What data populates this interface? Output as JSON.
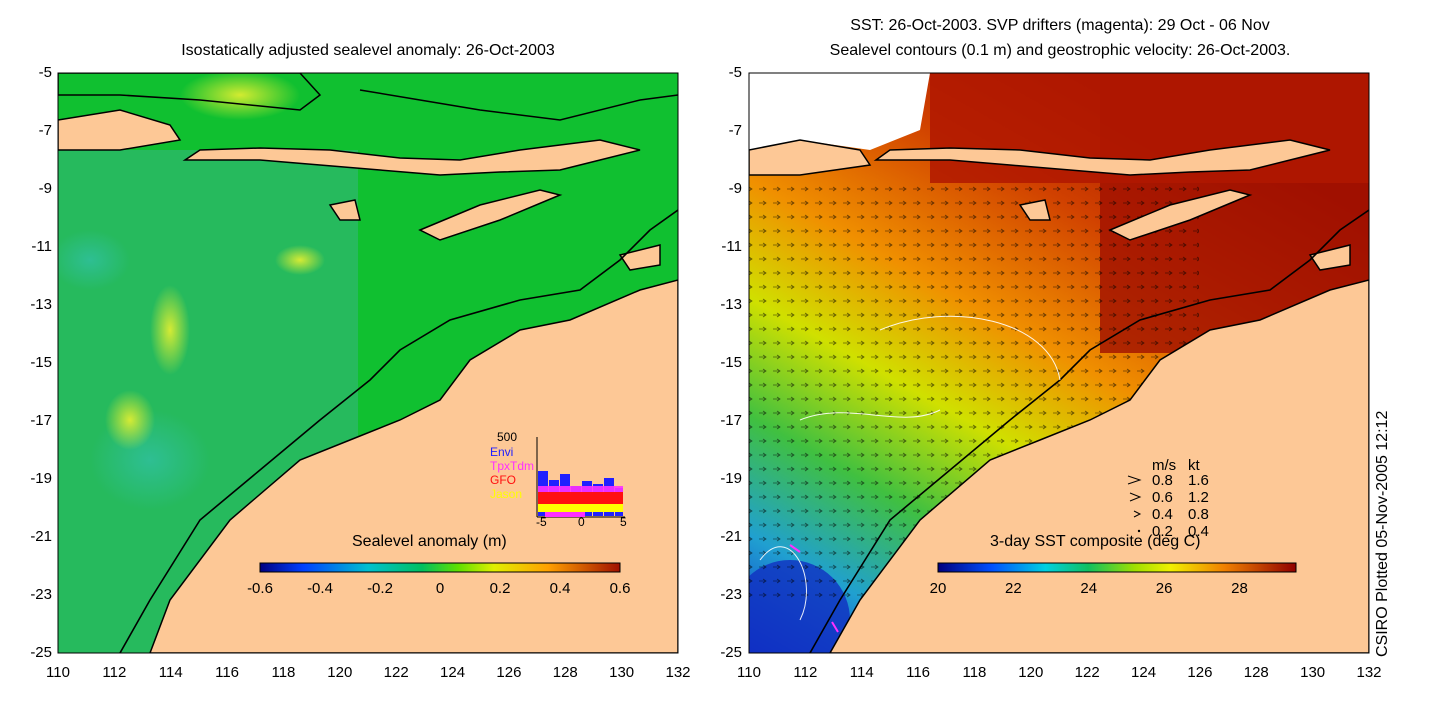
{
  "left_panel": {
    "title": "Isostatically adjusted sealevel anomaly: 26-Oct-2003",
    "colorbar": {
      "label": "Sealevel anomaly (m)",
      "ticks": [
        "-0.6",
        "-0.4",
        "-0.2",
        "0",
        "0.2",
        "0.4",
        "0.6"
      ],
      "range": [
        -0.6,
        0.6
      ]
    },
    "inset": {
      "ymax_label": "500",
      "legend": [
        {
          "name": "Envi",
          "color": "#2020ff"
        },
        {
          "name": "TpxTdm",
          "color": "#ff30ff"
        },
        {
          "name": "GFO",
          "color": "#ff1010"
        },
        {
          "name": "Jason",
          "color": "#ffff00"
        }
      ],
      "xticks": [
        "-5",
        "0",
        "5"
      ]
    }
  },
  "right_panel": {
    "title_line1": "SST: 26-Oct-2003. SVP drifters (magenta): 29 Oct - 06 Nov",
    "title_line2": "Sealevel contours (0.1 m) and geostrophic velocity: 26-Oct-2003.",
    "colorbar": {
      "label": "3-day SST composite (deg C)",
      "ticks": [
        "20",
        "22",
        "24",
        "26",
        "28"
      ],
      "range": [
        20,
        29.5
      ]
    },
    "velocity_legend": {
      "header_ms": "m/s",
      "header_kt": "kt",
      "rows": [
        {
          "ms": "0.8",
          "kt": "1.6",
          "arrow": ">"
        },
        {
          "ms": "0.6",
          "kt": "1.2",
          "arrow": ">"
        },
        {
          "ms": "0.4",
          "kt": "0.8",
          "arrow": ">"
        },
        {
          "ms": "0.2",
          "kt": "0.4",
          "arrow": "."
        }
      ]
    }
  },
  "axes": {
    "lat_ticks": [
      "-5",
      "-7",
      "-9",
      "-11",
      "-13",
      "-15",
      "-17",
      "-19",
      "-21",
      "-23",
      "-25"
    ],
    "lon_ticks": [
      "110",
      "112",
      "114",
      "116",
      "118",
      "120",
      "122",
      "124",
      "126",
      "128",
      "130",
      "132"
    ]
  },
  "credit": "CSIRO Plotted 05-Nov-2005 12:12"
}
